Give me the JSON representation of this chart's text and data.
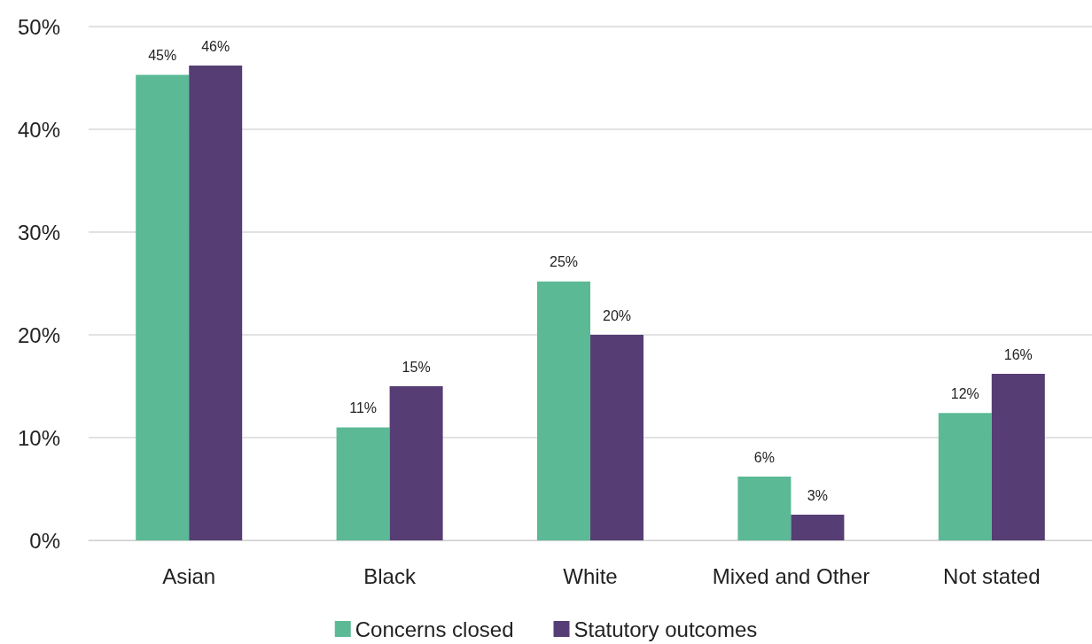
{
  "chart_data": {
    "type": "bar",
    "categories": [
      "Asian",
      "Black",
      "White",
      "Mixed and Other",
      "Not stated"
    ],
    "series": [
      {
        "name": "Concerns closed",
        "color": "#5bb996",
        "values": [
          45.3,
          11,
          25.2,
          6.2,
          12.4
        ],
        "value_labels": [
          "45%",
          "11%",
          "25%",
          "6%",
          "12%"
        ]
      },
      {
        "name": "Statutory outcomes",
        "color": "#563d74",
        "values": [
          46.2,
          15,
          20,
          2.5,
          16.2
        ],
        "value_labels": [
          "46%",
          "15%",
          "20%",
          "3%",
          "16%"
        ]
      }
    ],
    "ylim": [
      0,
      50
    ],
    "yticks": [
      {
        "value": 0,
        "label": "0%"
      },
      {
        "value": 10,
        "label": "10%"
      },
      {
        "value": 20,
        "label": "20%"
      },
      {
        "value": 30,
        "label": "30%"
      },
      {
        "value": 40,
        "label": "40%"
      },
      {
        "value": 50,
        "label": "50%"
      }
    ],
    "grid": "y",
    "legend": "bottom"
  }
}
